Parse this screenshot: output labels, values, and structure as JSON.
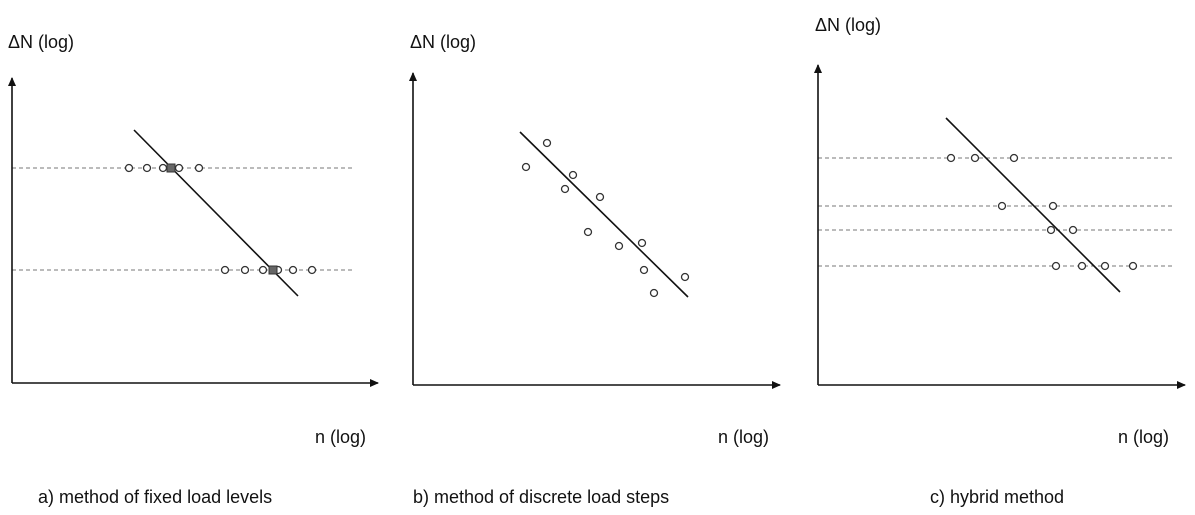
{
  "panels": [
    {
      "y_label": "ΔN (log)",
      "x_label": "n (log)",
      "caption": "a) method of fixed load levels"
    },
    {
      "y_label": "ΔN (log)",
      "x_label": "n (log)",
      "caption": "b) method of discrete load steps"
    },
    {
      "y_label": "ΔN (log)",
      "x_label": "n (log)",
      "caption": "c) hybrid method"
    }
  ]
}
